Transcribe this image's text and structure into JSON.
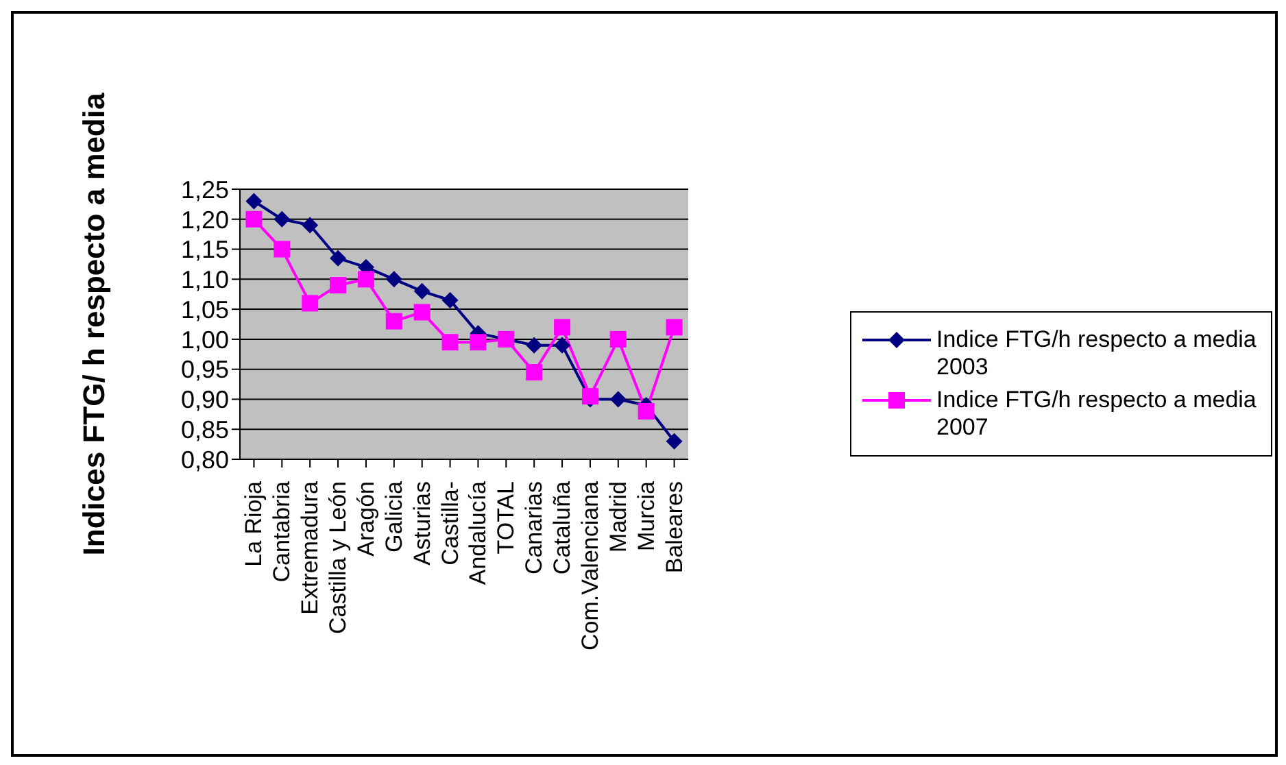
{
  "chart_data": {
    "type": "line",
    "ylabel": "Indices FTG/ h respecto a media",
    "categories": [
      "La Rioja",
      "Cantabria",
      "Extremadura",
      "Castilla y León",
      "Aragón",
      "Galicia",
      "Asturias",
      "Castilla-",
      "Andalucía",
      "TOTAL",
      "Canarias",
      "Cataluña",
      "Com.Valenciana",
      "Madrid",
      "Murcia",
      "Baleares"
    ],
    "series": [
      {
        "name": "Indice FTG/h respecto a media 2003",
        "color": "#000080",
        "marker": "diamond",
        "values": [
          1.23,
          1.2,
          1.19,
          1.135,
          1.12,
          1.1,
          1.08,
          1.065,
          1.01,
          1.0,
          0.99,
          0.99,
          0.9,
          0.9,
          0.89,
          0.83
        ]
      },
      {
        "name": "Indice FTG/h respecto a media 2007",
        "color": "#ff00ff",
        "marker": "square",
        "values": [
          1.2,
          1.15,
          1.06,
          1.09,
          1.1,
          1.03,
          1.045,
          0.995,
          0.995,
          1.0,
          0.945,
          1.02,
          0.905,
          1.0,
          0.88,
          1.02
        ]
      }
    ],
    "ylim": [
      0.8,
      1.25
    ],
    "yticks": [
      {
        "value": 0.8,
        "label": "0,80"
      },
      {
        "value": 0.85,
        "label": "0,85"
      },
      {
        "value": 0.9,
        "label": "0,90"
      },
      {
        "value": 0.95,
        "label": "0,95"
      },
      {
        "value": 1.0,
        "label": "1,00"
      },
      {
        "value": 1.05,
        "label": "1,05"
      },
      {
        "value": 1.1,
        "label": "1,10"
      },
      {
        "value": 1.15,
        "label": "1,15"
      },
      {
        "value": 1.2,
        "label": "1,20"
      },
      {
        "value": 1.25,
        "label": "1,25"
      }
    ],
    "grid": "y",
    "legend": "right"
  }
}
